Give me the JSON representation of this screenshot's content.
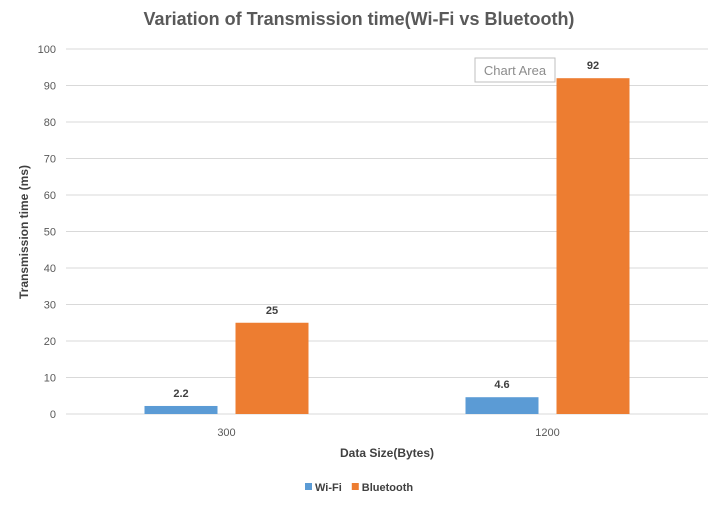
{
  "chart_data": {
    "type": "bar",
    "title": "Variation of Transmission time(Wi-Fi vs Bluetooth)",
    "xlabel": "Data Size(Bytes)",
    "ylabel": "Transmission time (ms)",
    "categories": [
      "300",
      "1200"
    ],
    "series": [
      {
        "name": "Wi-Fi",
        "values": [
          2.2,
          4.6
        ],
        "color": "#5b9bd5"
      },
      {
        "name": "Bluetooth",
        "values": [
          25,
          92
        ],
        "color": "#ed7d31"
      }
    ],
    "ylim": [
      0,
      100
    ],
    "yticks": [
      0,
      10,
      20,
      30,
      40,
      50,
      60,
      70,
      80,
      90,
      100
    ],
    "grid": true,
    "legend": "bottom",
    "data_labels": true
  },
  "tooltip": {
    "text": "Chart Area"
  },
  "colors": {
    "grid": "#d9d9d9",
    "axis": "#d9d9d9"
  }
}
